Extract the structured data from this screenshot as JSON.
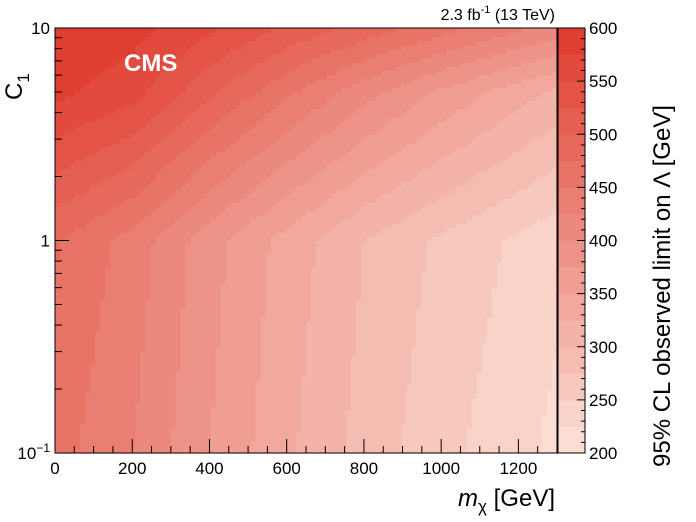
{
  "chart_data": {
    "type": "heatmap",
    "title": "",
    "lumi_label": {
      "base": "2.3 fb",
      "sup": "-1",
      "tail": " (13 TeV)"
    },
    "experiment_label": "CMS",
    "xlabel": {
      "italic": "m",
      "sub": "χ",
      "unit": " [GeV]"
    },
    "ylabel": {
      "base": "C",
      "sub": "1"
    },
    "zlabel": "95% CL observed limit on Λ [GeV]",
    "x_range": [
      0,
      1300
    ],
    "y_range": [
      0.1,
      10
    ],
    "y_scale": "log",
    "z_range": [
      200,
      600
    ],
    "z_step": 25,
    "x_ticks": [
      "0",
      "200",
      "400",
      "600",
      "800",
      "1000",
      "1200"
    ],
    "x_tick_values": [
      0,
      200,
      400,
      600,
      800,
      1000,
      1200
    ],
    "y_ticks": [
      {
        "value": 0.1,
        "base": "10",
        "sup": "−1"
      },
      {
        "value": 1,
        "base": "1",
        "sup": ""
      },
      {
        "value": 10,
        "base": "10",
        "sup": ""
      }
    ],
    "z_ticks": [
      "200",
      "250",
      "300",
      "350",
      "400",
      "450",
      "500",
      "550",
      "600"
    ],
    "z_tick_values": [
      200,
      250,
      300,
      350,
      400,
      450,
      500,
      550,
      600
    ],
    "color_low": "#fce2d8",
    "color_high": "#de3a2c",
    "limit_samples": [
      {
        "C1": 10,
        "mchi": [
          0,
          200,
          400,
          600,
          800,
          1000,
          1200,
          1300
        ],
        "limit": [
          595,
          585,
          555,
          520,
          490,
          460,
          430,
          415
        ]
      },
      {
        "C1": 5,
        "mchi": [
          0,
          200,
          400,
          600,
          800,
          1000,
          1200,
          1300
        ],
        "limit": [
          582,
          560,
          505,
          455,
          410,
          370,
          335,
          320
        ]
      },
      {
        "C1": 1,
        "mchi": [
          0,
          200,
          400,
          600,
          800,
          1000,
          1200,
          1300
        ],
        "limit": [
          478,
          440,
          385,
          340,
          300,
          270,
          245,
          232
        ]
      },
      {
        "C1": 0.1,
        "mchi": [
          0,
          200,
          400,
          600,
          800,
          1000,
          1200,
          1300
        ],
        "limit": [
          460,
          425,
          375,
          330,
          290,
          258,
          232,
          218
        ]
      }
    ]
  }
}
